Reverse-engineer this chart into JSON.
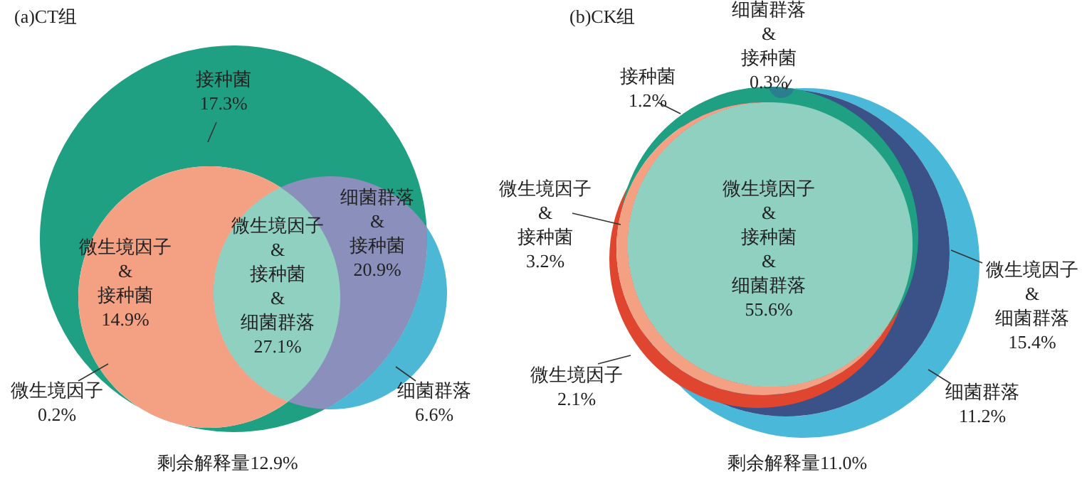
{
  "chart_data": [
    {
      "type": "other",
      "title": "(a)CT组",
      "categories": [
        "接种菌",
        "细菌群落",
        "细菌群落\n&\n接种菌",
        "微生境因子\n&\n接种菌",
        "微生境因子",
        "微生境因子\n&\n接种菌\n&\n细菌群落"
      ],
      "values": [
        17.3,
        6.6,
        20.9,
        14.9,
        0.2,
        27.1
      ],
      "value_labels": [
        "17.3%",
        "6.6%",
        "20.9%",
        "14.9%",
        "0.2%",
        "27.1%"
      ],
      "colors": [
        "#1fa083",
        "#4cb8d6",
        "#8a90bb",
        "#f4a083",
        "#f4a083",
        "#8fd0c0"
      ],
      "annotations": [
        "剩余解释量12.9%"
      ]
    },
    {
      "type": "other",
      "title": "(b)CK组",
      "categories": [
        "细菌群落",
        "微生境因子\n&\n细菌群落",
        "微生境因子",
        "接种菌",
        "细菌群落\n&\n接种菌",
        "微生境因子\n&\n接种菌",
        "微生境因子\n&\n接种菌\n&\n细菌群落"
      ],
      "values": [
        11.2,
        15.4,
        2.1,
        1.2,
        0.3,
        3.2,
        55.6
      ],
      "value_labels": [
        "11.2%",
        "15.4%",
        "2.1%",
        "1.2%",
        "0.3%",
        "3.2%",
        "55.6%"
      ],
      "colors": [
        "#4ab8d8",
        "#3a5287",
        "#e0452f",
        "#1fa083",
        "#2a7f8f",
        "#f4a083",
        "#8fd0c0"
      ],
      "annotations": [
        "剩余解释量11.0%"
      ]
    }
  ]
}
